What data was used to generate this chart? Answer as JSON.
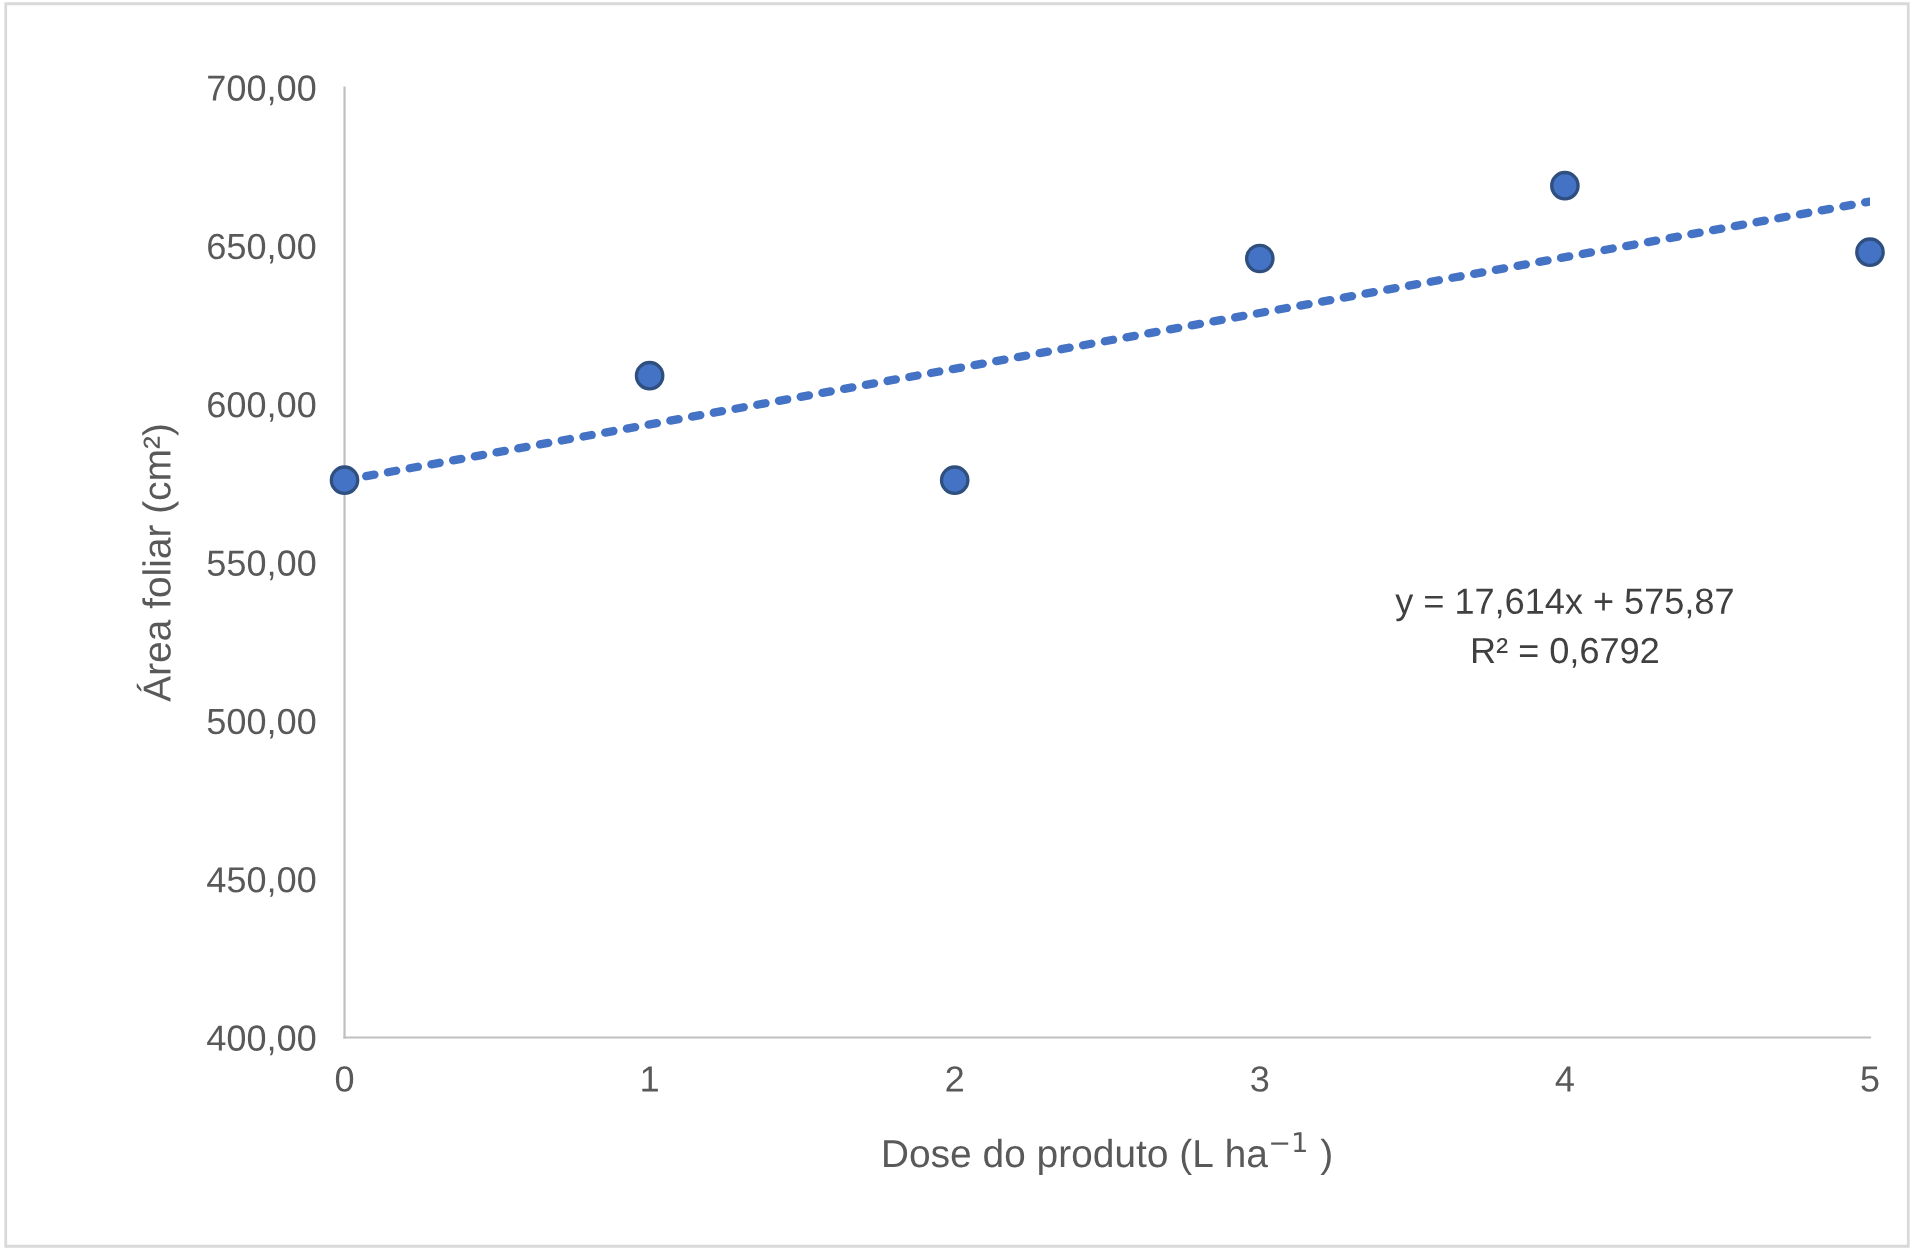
{
  "chart_data": {
    "type": "scatter",
    "xlabel": "Dose do produto (L ha$^{−1}$ )",
    "ylabel": "Área foliar (cm²)",
    "x": [
      0,
      1,
      2,
      3,
      4,
      5
    ],
    "series": [
      {
        "color": "#4472c4",
        "values": [
          576,
          609,
          576,
          646,
          669,
          648
        ],
        "marker": "circle"
      },
      {
        "type": "line",
        "color": "#4472c4",
        "x": [
          0,
          5
        ],
        "values": [
          576,
          664
        ],
        "line_style": "dotted",
        "marker": "none"
      }
    ],
    "xlim": [
      0,
      5
    ],
    "xticks": [
      0,
      1,
      2,
      3,
      4,
      5
    ],
    "ylim": [
      400,
      700
    ],
    "yticks": [
      {
        "value": 400,
        "label": "400,00"
      },
      {
        "value": 450,
        "label": "450,00"
      },
      {
        "value": 500,
        "label": "500,00"
      },
      {
        "value": 550,
        "label": "550,00"
      },
      {
        "value": 600,
        "label": "600,00"
      },
      {
        "value": 650,
        "label": "650,00"
      },
      {
        "value": 700,
        "label": "700,00"
      }
    ],
    "annotations": [
      "y = 17,614x + 575,87\nR² = 0,6792"
    ],
    "grid": false,
    "legend": false
  }
}
